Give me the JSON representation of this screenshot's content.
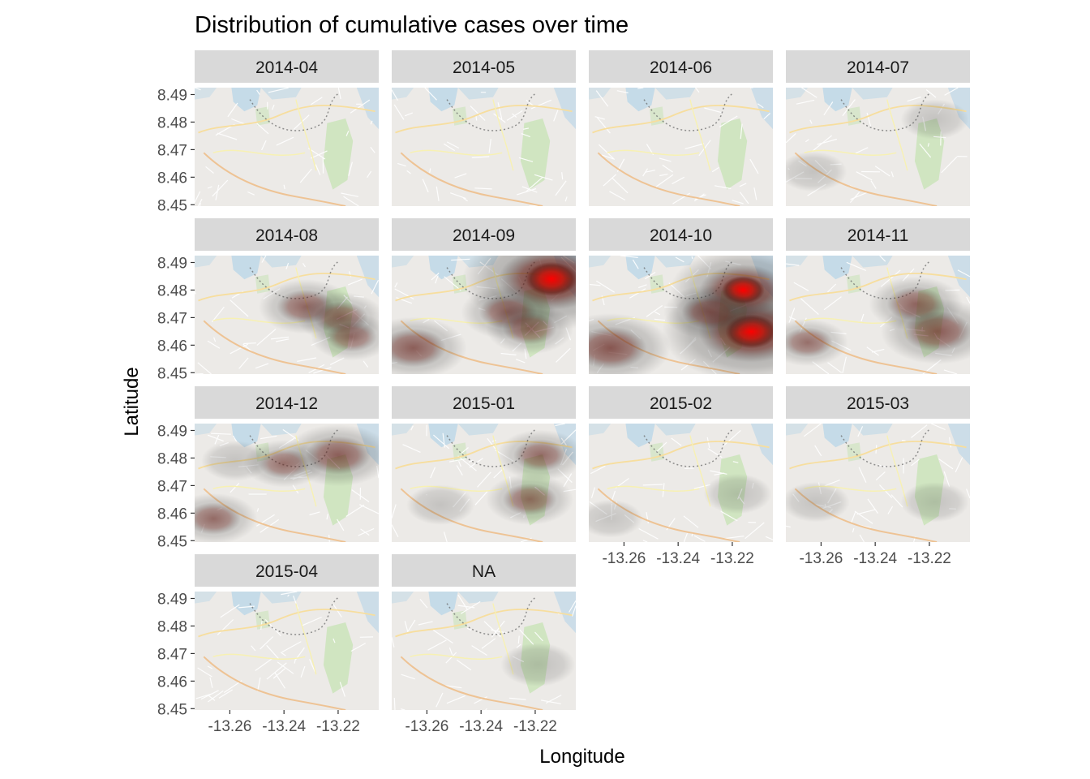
{
  "chart_data": {
    "type": "heatmap",
    "title": "Distribution of cumulative cases over time",
    "xlabel": "Longitude",
    "ylabel": "Latitude",
    "x_ticks": [
      "-13.26",
      "-13.24",
      "-13.22"
    ],
    "y_ticks": [
      "8.45",
      "8.46",
      "8.47",
      "8.48",
      "8.49"
    ],
    "xlim": [
      -13.273,
      -13.205
    ],
    "ylim": [
      8.4495,
      8.4925
    ],
    "grid": false,
    "basemap": "street map",
    "panels": [
      {
        "label": "2014-04",
        "hotspots": []
      },
      {
        "label": "2014-05",
        "hotspots": []
      },
      {
        "label": "2014-06",
        "hotspots": []
      },
      {
        "label": "2014-07",
        "hotspots": [
          {
            "lon": -13.218,
            "lat": 8.481,
            "intensity": 0.15
          },
          {
            "lon": -13.263,
            "lat": 8.462,
            "intensity": 0.15
          }
        ]
      },
      {
        "label": "2014-08",
        "hotspots": [
          {
            "lon": -13.232,
            "lat": 8.474,
            "intensity": 0.35
          },
          {
            "lon": -13.219,
            "lat": 8.47,
            "intensity": 0.3
          },
          {
            "lon": -13.215,
            "lat": 8.463,
            "intensity": 0.25
          }
        ]
      },
      {
        "label": "2014-09",
        "hotspots": [
          {
            "lon": -13.214,
            "lat": 8.484,
            "intensity": 1.0
          },
          {
            "lon": -13.265,
            "lat": 8.459,
            "intensity": 0.45
          },
          {
            "lon": -13.23,
            "lat": 8.472,
            "intensity": 0.35
          },
          {
            "lon": -13.222,
            "lat": 8.466,
            "intensity": 0.3
          }
        ]
      },
      {
        "label": "2014-10",
        "hotspots": [
          {
            "lon": -13.213,
            "lat": 8.465,
            "intensity": 1.0
          },
          {
            "lon": -13.216,
            "lat": 8.48,
            "intensity": 0.75
          },
          {
            "lon": -13.265,
            "lat": 8.459,
            "intensity": 0.55
          },
          {
            "lon": -13.228,
            "lat": 8.472,
            "intensity": 0.35
          }
        ]
      },
      {
        "label": "2014-11",
        "hotspots": [
          {
            "lon": -13.217,
            "lat": 8.465,
            "intensity": 0.5
          },
          {
            "lon": -13.225,
            "lat": 8.475,
            "intensity": 0.35
          },
          {
            "lon": -13.265,
            "lat": 8.461,
            "intensity": 0.25
          }
        ]
      },
      {
        "label": "2014-12",
        "hotspots": [
          {
            "lon": -13.22,
            "lat": 8.481,
            "intensity": 0.45
          },
          {
            "lon": -13.266,
            "lat": 8.458,
            "intensity": 0.3
          },
          {
            "lon": -13.24,
            "lat": 8.478,
            "intensity": 0.25
          },
          {
            "lon": -13.258,
            "lat": 8.479,
            "intensity": 0.15
          }
        ]
      },
      {
        "label": "2015-01",
        "hotspots": [
          {
            "lon": -13.222,
            "lat": 8.465,
            "intensity": 0.3
          },
          {
            "lon": -13.218,
            "lat": 8.481,
            "intensity": 0.3
          },
          {
            "lon": -13.255,
            "lat": 8.463,
            "intensity": 0.15
          }
        ]
      },
      {
        "label": "2015-02",
        "hotspots": [
          {
            "lon": -13.218,
            "lat": 8.467,
            "intensity": 0.15
          },
          {
            "lon": -13.265,
            "lat": 8.458,
            "intensity": 0.12
          }
        ]
      },
      {
        "label": "2015-03",
        "hotspots": [
          {
            "lon": -13.218,
            "lat": 8.464,
            "intensity": 0.15
          },
          {
            "lon": -13.262,
            "lat": 8.464,
            "intensity": 0.15
          }
        ]
      },
      {
        "label": "2015-04",
        "hotspots": []
      },
      {
        "label": "NA",
        "hotspots": [
          {
            "lon": -13.219,
            "lat": 8.466,
            "intensity": 0.2
          }
        ]
      }
    ]
  },
  "colors": {
    "strip": "#d9d9d9",
    "map_base": "#e6e3df",
    "water": "#a8cbe0",
    "park": "#b9dba3",
    "road_major": "#f4d37e",
    "road_secondary": "#f5ec9a",
    "road_minor": "#ffffff",
    "density_low": "#3a3a3a",
    "density_mid": "#6b1c14",
    "density_high": "#ff0000",
    "tick": "#333333"
  }
}
